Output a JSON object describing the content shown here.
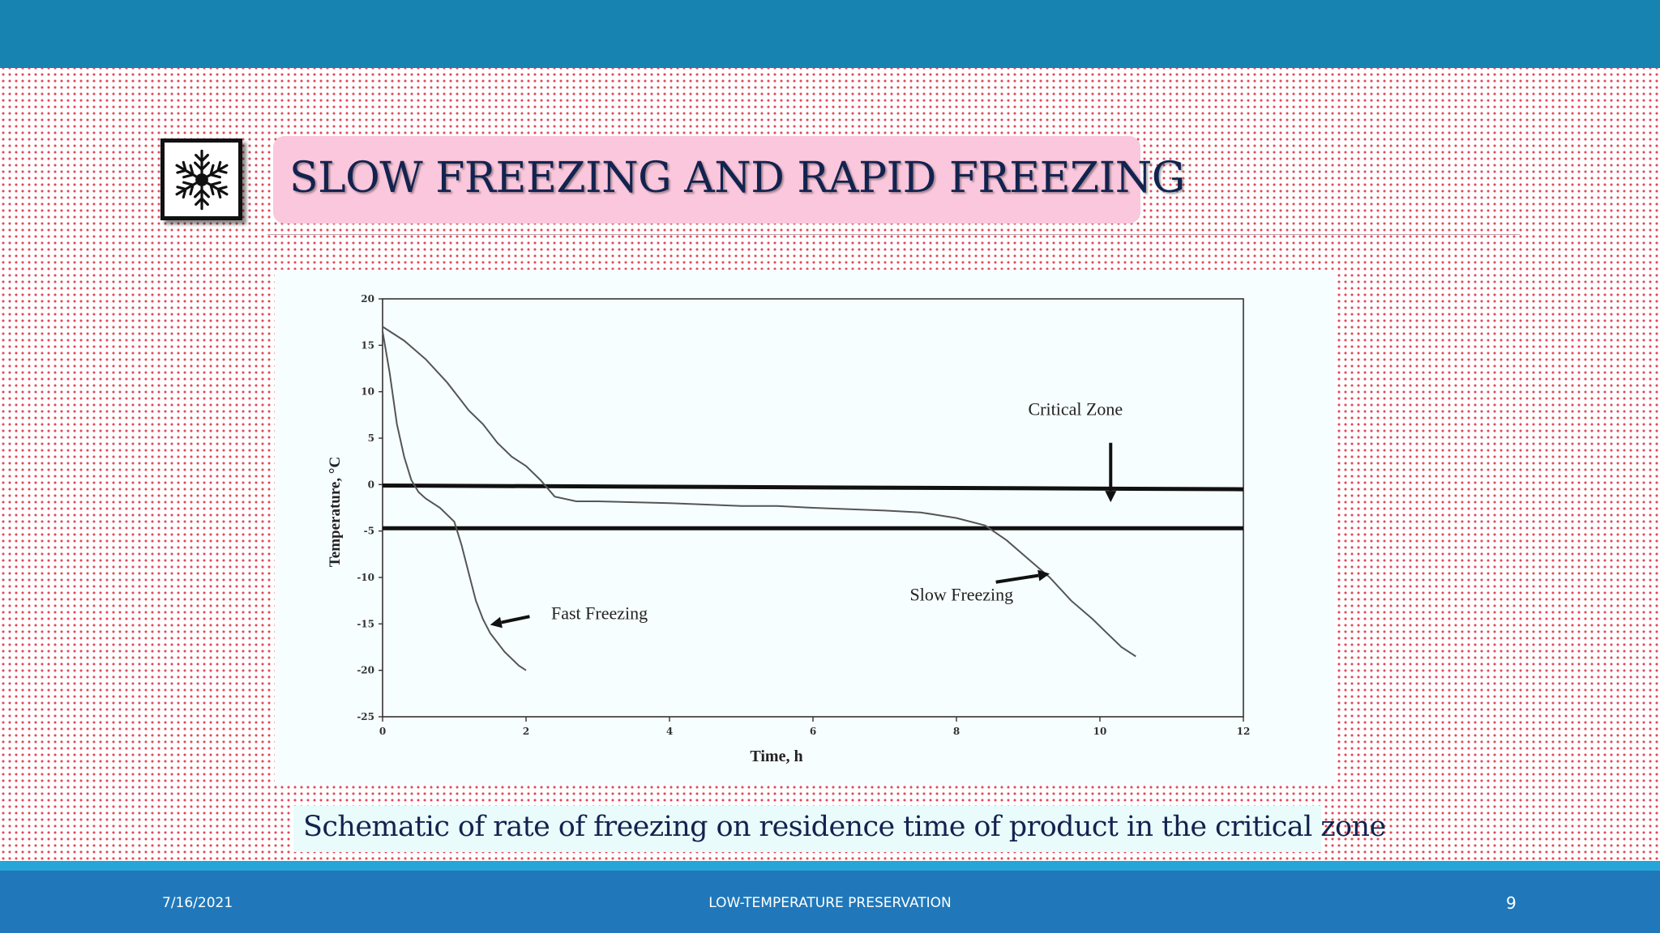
{
  "slide": {
    "title": "SLOW FREEZING AND RAPID FREEZING",
    "caption": "Schematic of rate of freezing on residence time of product in the critical zone",
    "footer": {
      "date": "7/16/2021",
      "center": "LOW-TEMPERATURE PRESERVATION",
      "page": "9"
    },
    "icon": "snowflake-icon",
    "colors": {
      "top_bar": "#1783b0",
      "footer": "#2078ba",
      "title_box": "#fbc7dc",
      "title_text": "#13234f"
    }
  },
  "chart_data": {
    "type": "line",
    "xlabel": "Time, h",
    "ylabel": "Temperature, °C",
    "xlim": [
      0,
      12
    ],
    "ylim": [
      -25,
      20
    ],
    "x_ticks": [
      "0",
      "2",
      "4",
      "6",
      "8",
      "10",
      "12"
    ],
    "y_ticks": [
      "20",
      "15",
      "10",
      "5",
      "0",
      "-5",
      "-10",
      "-15",
      "-20",
      "-25"
    ],
    "grid": false,
    "critical_zone": {
      "label": "Critical Zone",
      "upper": -0.3,
      "lower": -4.7
    },
    "series": [
      {
        "name": "Fast Freezing",
        "x": [
          0,
          0.1,
          0.2,
          0.3,
          0.4,
          0.5,
          0.6,
          0.8,
          1.0,
          1.1,
          1.2,
          1.3,
          1.4,
          1.5,
          1.7,
          1.9,
          2.0
        ],
        "y": [
          16.5,
          12,
          6.5,
          3,
          0.5,
          -0.8,
          -1.5,
          -2.5,
          -4,
          -6.5,
          -9.5,
          -12.5,
          -14.5,
          -16,
          -18,
          -19.5,
          -20
        ]
      },
      {
        "name": "Slow Freezing",
        "x": [
          0,
          0.3,
          0.6,
          0.9,
          1.1,
          1.2,
          1.4,
          1.6,
          1.8,
          2.0,
          2.2,
          2.4,
          2.7,
          3.0,
          4.0,
          5.0,
          5.5,
          6.0,
          7.0,
          7.5,
          8.0,
          8.4,
          8.7,
          9.0,
          9.3,
          9.6,
          9.9,
          10.1,
          10.3,
          10.5
        ],
        "y": [
          17,
          15.5,
          13.5,
          11,
          9,
          8,
          6.5,
          4.5,
          3,
          2,
          0.5,
          -1.3,
          -1.8,
          -1.8,
          -2.0,
          -2.3,
          -2.3,
          -2.5,
          -2.8,
          -3.0,
          -3.6,
          -4.4,
          -6,
          -8,
          -10,
          -12.5,
          -14.5,
          -16,
          -17.5,
          -18.5
        ]
      }
    ],
    "annotations": [
      {
        "text": "Fast Freezing",
        "x": 2.35,
        "y": -14.5
      },
      {
        "text": "Slow Freezing",
        "x": 7.35,
        "y": -12.5
      },
      {
        "text": "Critical Zone",
        "x": 9.0,
        "y": 7.5
      }
    ]
  }
}
